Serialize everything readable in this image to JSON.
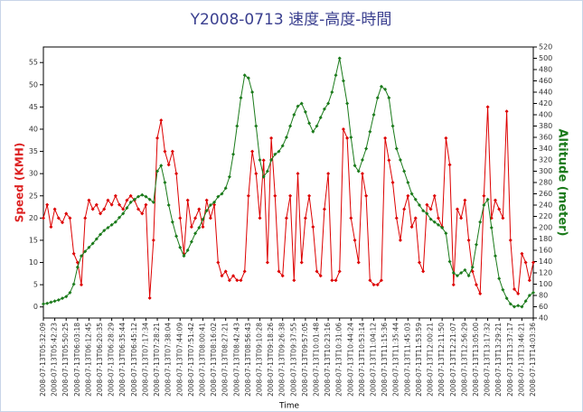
{
  "chart_data": {
    "type": "line",
    "title": "Y2008-0713 速度-高度-時間",
    "x_label": "Time",
    "y_label": "Speed (KMH)",
    "y2_label": "Altitude (meter)",
    "categories": [
      "2008-07-13T05:32:09",
      null,
      null,
      "2008-07-13T05:42:23",
      null,
      null,
      "2008-07-13T05:50:25",
      null,
      null,
      "2008-07-13T06:03:18",
      null,
      null,
      "2008-07-13T06:12:45",
      null,
      null,
      "2008-07-13T06:20:35",
      null,
      null,
      "2008-07-13T06:28:29",
      null,
      null,
      "2008-07-13T06:35:44",
      null,
      null,
      "2008-07-13T06:45:12",
      null,
      null,
      "2008-07-13T07:17:34",
      null,
      null,
      "2008-07-13T07:28:21",
      null,
      null,
      "2008-07-13T07:38:04",
      null,
      null,
      "2008-07-13T07:44:09",
      null,
      null,
      "2008-07-13T07:51:42",
      null,
      null,
      "2008-07-13T08:00:41",
      null,
      null,
      "2008-07-13T08:16:02",
      null,
      null,
      "2008-07-13T08:27:21",
      null,
      null,
      "2008-07-13T08:42:43",
      null,
      null,
      "2008-07-13T08:56:43",
      null,
      null,
      "2008-07-13T09:10:28",
      null,
      null,
      "2008-07-13T09:18:26",
      null,
      null,
      "2008-07-13T09:26:38",
      null,
      null,
      "2008-07-13T09:37:55",
      null,
      null,
      "2008-07-13T09:57:05",
      null,
      null,
      "2008-07-13T10:01:48",
      null,
      null,
      "2008-07-13T10:23:16",
      null,
      null,
      "2008-07-13T10:31:06",
      null,
      null,
      "2008-07-13T10:44:24",
      null,
      null,
      "2008-07-13T10:53:14",
      null,
      null,
      "2008-07-13T11:04:12",
      null,
      null,
      "2008-07-13T11:15:36",
      null,
      null,
      "2008-07-13T11:35:44",
      null,
      null,
      "2008-07-13T11:45:03",
      null,
      null,
      "2008-07-13T11:53:59",
      null,
      null,
      "2008-07-13T12:00:21",
      null,
      null,
      "2008-07-13T12:11:50",
      null,
      null,
      "2008-07-13T12:21:07",
      null,
      null,
      "2008-07-13T12:56:29",
      null,
      null,
      "2008-07-13T13:05:00",
      null,
      null,
      "2008-07-13T13:17:32",
      null,
      null,
      "2008-07-13T13:29:21",
      null,
      null,
      "2008-07-13T13:37:17",
      null,
      null,
      "2008-07-13T13:46:21",
      null,
      null,
      "2008-07-13T14:03:36"
    ],
    "series": [
      {
        "name": "Speed",
        "color": "#dd0000",
        "axis": "y",
        "values": [
          20,
          23,
          18,
          22,
          20,
          19,
          21,
          20,
          12,
          10,
          5,
          20,
          24,
          22,
          23,
          21,
          22,
          24,
          23,
          25,
          23,
          22,
          24,
          25,
          24,
          22,
          21,
          23,
          2,
          15,
          38,
          42,
          35,
          32,
          35,
          30,
          20,
          12,
          24,
          18,
          20,
          22,
          18,
          24,
          20,
          23,
          10,
          7,
          8,
          6,
          7,
          6,
          6,
          8,
          25,
          35,
          30,
          20,
          33,
          10,
          38,
          25,
          8,
          7,
          20,
          25,
          6,
          30,
          10,
          20,
          25,
          18,
          8,
          7,
          22,
          30,
          6,
          6,
          8,
          40,
          38,
          20,
          15,
          10,
          30,
          25,
          6,
          5,
          5,
          6,
          38,
          33,
          28,
          20,
          15,
          22,
          25,
          18,
          20,
          10,
          8,
          23,
          22,
          25,
          20,
          18,
          38,
          32,
          5,
          22,
          20,
          24,
          15,
          8,
          5,
          3,
          25,
          45,
          20,
          24,
          22,
          20,
          44,
          15,
          4,
          3,
          12,
          10,
          6,
          10
        ]
      },
      {
        "name": "Altitude",
        "color": "#1a7a1a",
        "axis": "y2",
        "values": [
          65,
          66,
          68,
          70,
          72,
          75,
          78,
          85,
          100,
          130,
          150,
          158,
          165,
          172,
          180,
          188,
          195,
          200,
          205,
          210,
          218,
          225,
          235,
          245,
          250,
          255,
          258,
          255,
          250,
          245,
          300,
          310,
          280,
          240,
          210,
          185,
          165,
          150,
          160,
          175,
          190,
          200,
          215,
          230,
          240,
          245,
          255,
          260,
          270,
          290,
          330,
          380,
          430,
          470,
          465,
          440,
          380,
          320,
          290,
          300,
          320,
          330,
          335,
          345,
          360,
          380,
          400,
          415,
          420,
          405,
          385,
          370,
          380,
          395,
          410,
          420,
          440,
          470,
          500,
          460,
          420,
          360,
          310,
          300,
          320,
          340,
          370,
          400,
          430,
          450,
          445,
          430,
          380,
          340,
          320,
          300,
          280,
          260,
          250,
          240,
          230,
          225,
          215,
          210,
          205,
          200,
          190,
          140,
          120,
          115,
          120,
          125,
          115,
          130,
          170,
          210,
          240,
          250,
          200,
          150,
          110,
          90,
          75,
          65,
          60,
          62,
          60,
          70,
          80,
          85
        ]
      }
    ],
    "ylim": [
      -2.5,
      58.5
    ],
    "yticks": [
      0,
      5,
      10,
      15,
      20,
      25,
      30,
      35,
      40,
      45,
      50,
      55
    ],
    "y2lim": [
      40,
      520
    ],
    "y2ticks": [
      40,
      60,
      80,
      100,
      120,
      140,
      160,
      180,
      200,
      220,
      240,
      260,
      280,
      300,
      320,
      340,
      360,
      380,
      400,
      420,
      440,
      460,
      480,
      500,
      520
    ]
  }
}
